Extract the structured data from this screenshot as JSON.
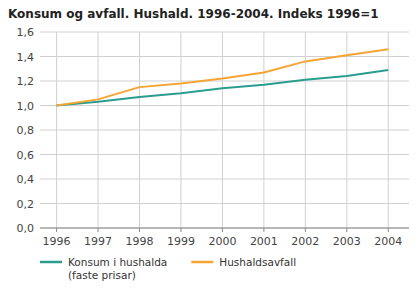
{
  "chart_data": {
    "type": "line",
    "title": "Konsum og avfall. Hushald. 1996-2004. Indeks 1996=1",
    "x": [
      1996,
      1997,
      1998,
      1999,
      2000,
      2001,
      2002,
      2003,
      2004
    ],
    "series": [
      {
        "name": "Konsum i hushalda\n(faste prisar)",
        "color": "#2a9d8f",
        "values": [
          1.0,
          1.03,
          1.07,
          1.1,
          1.14,
          1.17,
          1.21,
          1.24,
          1.29
        ]
      },
      {
        "name": "Hushaldsavfall",
        "color": "#f4a533",
        "values": [
          1.0,
          1.05,
          1.15,
          1.18,
          1.22,
          1.27,
          1.36,
          1.41,
          1.46
        ]
      }
    ],
    "xlim": [
      1995.6,
      2004.5
    ],
    "xticks": [
      1996,
      1997,
      1998,
      1999,
      2000,
      2001,
      2002,
      2003,
      2004
    ],
    "ylim": [
      0.0,
      1.6
    ],
    "yticks": [
      {
        "value": 0.0,
        "label": "0,0"
      },
      {
        "value": 0.2,
        "label": "0,2"
      },
      {
        "value": 0.4,
        "label": "0,4"
      },
      {
        "value": 0.6,
        "label": "0,6"
      },
      {
        "value": 0.8,
        "label": "0,8"
      },
      {
        "value": 1.0,
        "label": "1,0"
      },
      {
        "value": 1.2,
        "label": "1,2"
      },
      {
        "value": 1.4,
        "label": "1,4"
      },
      {
        "value": 1.6,
        "label": "1,6"
      }
    ],
    "grid": true,
    "legend": "bottom"
  }
}
